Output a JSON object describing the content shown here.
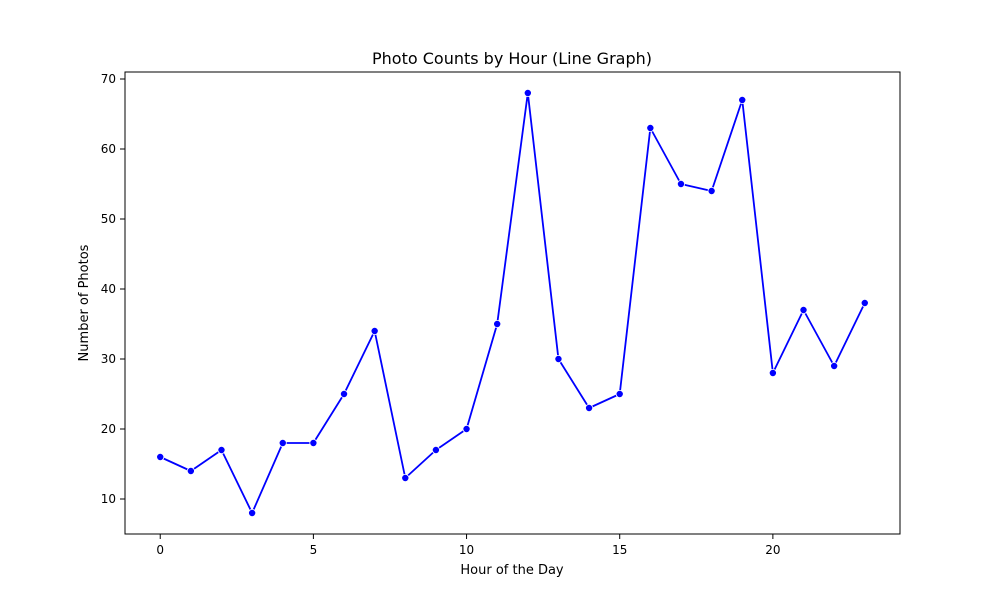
{
  "chart_data": {
    "type": "line",
    "title": "Photo Counts by Hour (Line Graph)",
    "xlabel": "Hour of the Day",
    "ylabel": "Number of Photos",
    "x": [
      0,
      1,
      2,
      3,
      4,
      5,
      6,
      7,
      8,
      9,
      10,
      11,
      12,
      13,
      14,
      15,
      16,
      17,
      18,
      19,
      20,
      21,
      22,
      23
    ],
    "series": [
      {
        "values": [
          16,
          14,
          17,
          8,
          18,
          18,
          25,
          34,
          13,
          17,
          20,
          35,
          68,
          30,
          23,
          25,
          63,
          55,
          54,
          67,
          28,
          37,
          29,
          38
        ],
        "color": "#0000ff",
        "marker": "circle"
      }
    ],
    "xlim": [
      -1.15,
      24.15
    ],
    "ylim": [
      5,
      71
    ],
    "xticks": [
      0,
      5,
      10,
      15,
      20
    ],
    "yticks": [
      10,
      20,
      30,
      40,
      50,
      60,
      70
    ],
    "grid": false,
    "legend": "none"
  }
}
